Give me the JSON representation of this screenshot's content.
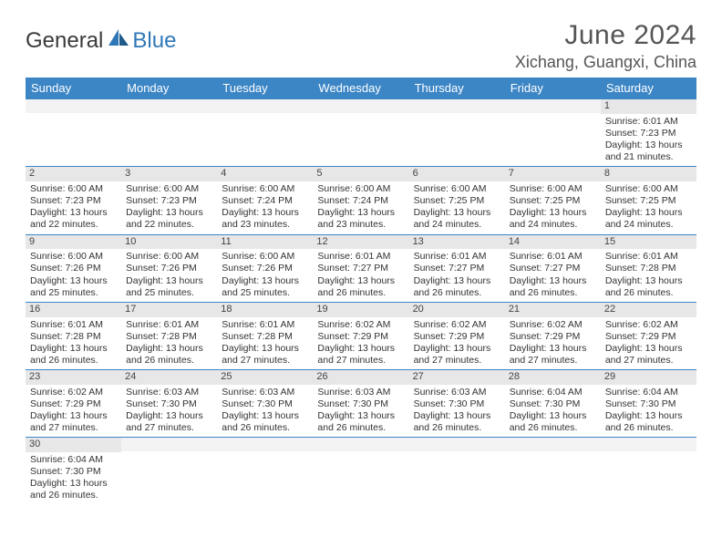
{
  "brand": {
    "general": "General",
    "blue": "Blue"
  },
  "title": "June 2024",
  "location": "Xichang, Guangxi, China",
  "colors": {
    "header_bg": "#3c86c6",
    "header_text": "#ffffff",
    "daynum_bg": "#e7e7e7",
    "blank_bg": "#f3f3f3",
    "row_border": "#3c86c6",
    "title_color": "#555555",
    "body_text": "#333333"
  },
  "typography": {
    "title_fontsize": 30,
    "location_fontsize": 18,
    "dow_fontsize": 13,
    "cell_fontsize": 10.5
  },
  "dow": [
    "Sunday",
    "Monday",
    "Tuesday",
    "Wednesday",
    "Thursday",
    "Friday",
    "Saturday"
  ],
  "weeks": [
    [
      {
        "blank": true
      },
      {
        "blank": true
      },
      {
        "blank": true
      },
      {
        "blank": true
      },
      {
        "blank": true
      },
      {
        "blank": true
      },
      {
        "day": "1",
        "sunrise": "Sunrise: 6:01 AM",
        "sunset": "Sunset: 7:23 PM",
        "dl1": "Daylight: 13 hours",
        "dl2": "and 21 minutes."
      }
    ],
    [
      {
        "day": "2",
        "sunrise": "Sunrise: 6:00 AM",
        "sunset": "Sunset: 7:23 PM",
        "dl1": "Daylight: 13 hours",
        "dl2": "and 22 minutes."
      },
      {
        "day": "3",
        "sunrise": "Sunrise: 6:00 AM",
        "sunset": "Sunset: 7:23 PM",
        "dl1": "Daylight: 13 hours",
        "dl2": "and 22 minutes."
      },
      {
        "day": "4",
        "sunrise": "Sunrise: 6:00 AM",
        "sunset": "Sunset: 7:24 PM",
        "dl1": "Daylight: 13 hours",
        "dl2": "and 23 minutes."
      },
      {
        "day": "5",
        "sunrise": "Sunrise: 6:00 AM",
        "sunset": "Sunset: 7:24 PM",
        "dl1": "Daylight: 13 hours",
        "dl2": "and 23 minutes."
      },
      {
        "day": "6",
        "sunrise": "Sunrise: 6:00 AM",
        "sunset": "Sunset: 7:25 PM",
        "dl1": "Daylight: 13 hours",
        "dl2": "and 24 minutes."
      },
      {
        "day": "7",
        "sunrise": "Sunrise: 6:00 AM",
        "sunset": "Sunset: 7:25 PM",
        "dl1": "Daylight: 13 hours",
        "dl2": "and 24 minutes."
      },
      {
        "day": "8",
        "sunrise": "Sunrise: 6:00 AM",
        "sunset": "Sunset: 7:25 PM",
        "dl1": "Daylight: 13 hours",
        "dl2": "and 24 minutes."
      }
    ],
    [
      {
        "day": "9",
        "sunrise": "Sunrise: 6:00 AM",
        "sunset": "Sunset: 7:26 PM",
        "dl1": "Daylight: 13 hours",
        "dl2": "and 25 minutes."
      },
      {
        "day": "10",
        "sunrise": "Sunrise: 6:00 AM",
        "sunset": "Sunset: 7:26 PM",
        "dl1": "Daylight: 13 hours",
        "dl2": "and 25 minutes."
      },
      {
        "day": "11",
        "sunrise": "Sunrise: 6:00 AM",
        "sunset": "Sunset: 7:26 PM",
        "dl1": "Daylight: 13 hours",
        "dl2": "and 25 minutes."
      },
      {
        "day": "12",
        "sunrise": "Sunrise: 6:01 AM",
        "sunset": "Sunset: 7:27 PM",
        "dl1": "Daylight: 13 hours",
        "dl2": "and 26 minutes."
      },
      {
        "day": "13",
        "sunrise": "Sunrise: 6:01 AM",
        "sunset": "Sunset: 7:27 PM",
        "dl1": "Daylight: 13 hours",
        "dl2": "and 26 minutes."
      },
      {
        "day": "14",
        "sunrise": "Sunrise: 6:01 AM",
        "sunset": "Sunset: 7:27 PM",
        "dl1": "Daylight: 13 hours",
        "dl2": "and 26 minutes."
      },
      {
        "day": "15",
        "sunrise": "Sunrise: 6:01 AM",
        "sunset": "Sunset: 7:28 PM",
        "dl1": "Daylight: 13 hours",
        "dl2": "and 26 minutes."
      }
    ],
    [
      {
        "day": "16",
        "sunrise": "Sunrise: 6:01 AM",
        "sunset": "Sunset: 7:28 PM",
        "dl1": "Daylight: 13 hours",
        "dl2": "and 26 minutes."
      },
      {
        "day": "17",
        "sunrise": "Sunrise: 6:01 AM",
        "sunset": "Sunset: 7:28 PM",
        "dl1": "Daylight: 13 hours",
        "dl2": "and 26 minutes."
      },
      {
        "day": "18",
        "sunrise": "Sunrise: 6:01 AM",
        "sunset": "Sunset: 7:28 PM",
        "dl1": "Daylight: 13 hours",
        "dl2": "and 27 minutes."
      },
      {
        "day": "19",
        "sunrise": "Sunrise: 6:02 AM",
        "sunset": "Sunset: 7:29 PM",
        "dl1": "Daylight: 13 hours",
        "dl2": "and 27 minutes."
      },
      {
        "day": "20",
        "sunrise": "Sunrise: 6:02 AM",
        "sunset": "Sunset: 7:29 PM",
        "dl1": "Daylight: 13 hours",
        "dl2": "and 27 minutes."
      },
      {
        "day": "21",
        "sunrise": "Sunrise: 6:02 AM",
        "sunset": "Sunset: 7:29 PM",
        "dl1": "Daylight: 13 hours",
        "dl2": "and 27 minutes."
      },
      {
        "day": "22",
        "sunrise": "Sunrise: 6:02 AM",
        "sunset": "Sunset: 7:29 PM",
        "dl1": "Daylight: 13 hours",
        "dl2": "and 27 minutes."
      }
    ],
    [
      {
        "day": "23",
        "sunrise": "Sunrise: 6:02 AM",
        "sunset": "Sunset: 7:29 PM",
        "dl1": "Daylight: 13 hours",
        "dl2": "and 27 minutes."
      },
      {
        "day": "24",
        "sunrise": "Sunrise: 6:03 AM",
        "sunset": "Sunset: 7:30 PM",
        "dl1": "Daylight: 13 hours",
        "dl2": "and 27 minutes."
      },
      {
        "day": "25",
        "sunrise": "Sunrise: 6:03 AM",
        "sunset": "Sunset: 7:30 PM",
        "dl1": "Daylight: 13 hours",
        "dl2": "and 26 minutes."
      },
      {
        "day": "26",
        "sunrise": "Sunrise: 6:03 AM",
        "sunset": "Sunset: 7:30 PM",
        "dl1": "Daylight: 13 hours",
        "dl2": "and 26 minutes."
      },
      {
        "day": "27",
        "sunrise": "Sunrise: 6:03 AM",
        "sunset": "Sunset: 7:30 PM",
        "dl1": "Daylight: 13 hours",
        "dl2": "and 26 minutes."
      },
      {
        "day": "28",
        "sunrise": "Sunrise: 6:04 AM",
        "sunset": "Sunset: 7:30 PM",
        "dl1": "Daylight: 13 hours",
        "dl2": "and 26 minutes."
      },
      {
        "day": "29",
        "sunrise": "Sunrise: 6:04 AM",
        "sunset": "Sunset: 7:30 PM",
        "dl1": "Daylight: 13 hours",
        "dl2": "and 26 minutes."
      }
    ],
    [
      {
        "day": "30",
        "sunrise": "Sunrise: 6:04 AM",
        "sunset": "Sunset: 7:30 PM",
        "dl1": "Daylight: 13 hours",
        "dl2": "and 26 minutes."
      },
      {
        "blank": true
      },
      {
        "blank": true
      },
      {
        "blank": true
      },
      {
        "blank": true
      },
      {
        "blank": true
      },
      {
        "blank": true
      }
    ]
  ]
}
